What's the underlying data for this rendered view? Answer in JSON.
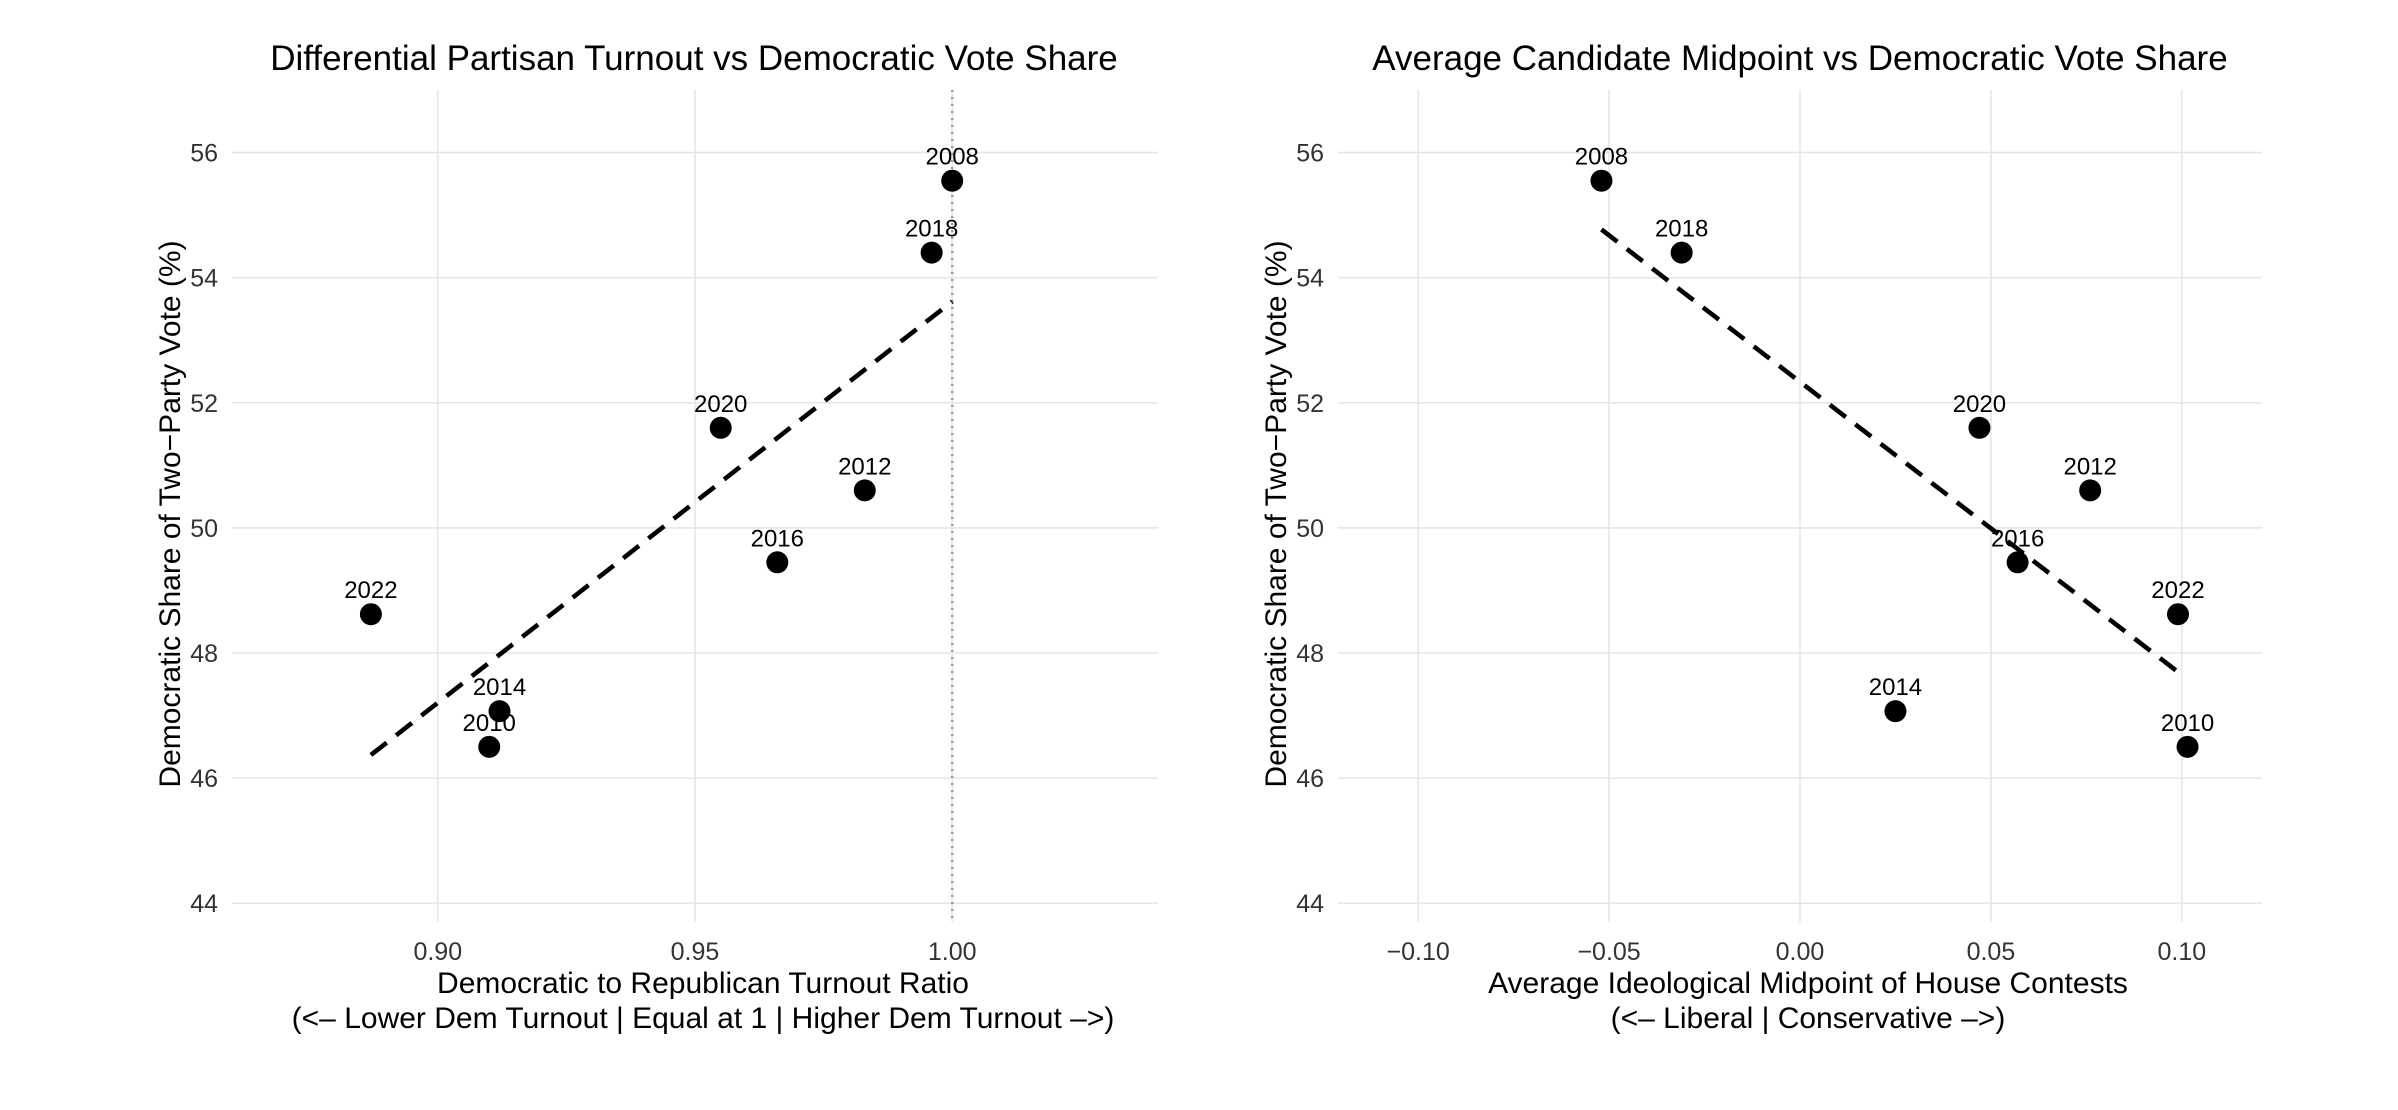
{
  "chart_data": [
    {
      "type": "scatter",
      "title": "Differential Partisan Turnout vs Democratic Vote Share",
      "xlabel": "Democratic to Republican Turnout Ratio",
      "xlabel_line2": "(<– Lower Dem Turnout | Equal at 1 | Higher Dem Turnout –>)",
      "ylabel": "Democratic Share of Two−Party Vote (%)",
      "xlim": [
        0.86,
        1.04
      ],
      "ylim": [
        43.7,
        57.0
      ],
      "x_ticks": [
        0.9,
        0.95,
        1.0
      ],
      "x_tick_labels": [
        "0.90",
        "0.95",
        "1.00"
      ],
      "y_ticks": [
        44,
        46,
        48,
        50,
        52,
        54,
        56
      ],
      "y_tick_labels": [
        "44",
        "46",
        "48",
        "50",
        "52",
        "54",
        "56"
      ],
      "reference_line": {
        "orientation": "vertical",
        "x": 1.0,
        "style": "dotted",
        "color": "#999999"
      },
      "trend_line": {
        "style": "dashed",
        "x": [
          0.887,
          1.0
        ],
        "y": [
          46.37,
          53.62
        ]
      },
      "points": [
        {
          "label": "2008",
          "x": 1.0,
          "y": 55.55
        },
        {
          "label": "2010",
          "x": 0.91,
          "y": 46.5
        },
        {
          "label": "2012",
          "x": 0.983,
          "y": 50.6
        },
        {
          "label": "2014",
          "x": 0.912,
          "y": 47.07
        },
        {
          "label": "2016",
          "x": 0.966,
          "y": 49.45
        },
        {
          "label": "2018",
          "x": 0.996,
          "y": 54.4
        },
        {
          "label": "2020",
          "x": 0.955,
          "y": 51.6
        },
        {
          "label": "2022",
          "x": 0.887,
          "y": 48.62
        }
      ]
    },
    {
      "type": "scatter",
      "title": "Average Candidate Midpoint vs Democratic Vote Share",
      "xlabel": "Average Ideological Midpoint of House Contests",
      "xlabel_line2": "(<– Liberal | Conservative –>)",
      "ylabel": "Democratic Share of Two−Party Vote (%)",
      "xlim": [
        -0.121,
        0.121
      ],
      "ylim": [
        43.7,
        57.0
      ],
      "x_ticks": [
        -0.1,
        -0.05,
        0.0,
        0.05,
        0.1
      ],
      "x_tick_labels": [
        "−0.10",
        "−0.05",
        "0.00",
        "0.05",
        "0.10"
      ],
      "y_ticks": [
        44,
        46,
        48,
        50,
        52,
        54,
        56
      ],
      "y_tick_labels": [
        "44",
        "46",
        "48",
        "50",
        "52",
        "54",
        "56"
      ],
      "trend_line": {
        "style": "dashed",
        "x": [
          -0.052,
          0.1
        ],
        "y": [
          54.77,
          47.65
        ]
      },
      "points": [
        {
          "label": "2008",
          "x": -0.052,
          "y": 55.55
        },
        {
          "label": "2010",
          "x": 0.1015,
          "y": 46.5
        },
        {
          "label": "2012",
          "x": 0.076,
          "y": 50.6
        },
        {
          "label": "2014",
          "x": 0.025,
          "y": 47.07
        },
        {
          "label": "2016",
          "x": 0.057,
          "y": 49.45
        },
        {
          "label": "2018",
          "x": -0.031,
          "y": 54.4
        },
        {
          "label": "2020",
          "x": 0.047,
          "y": 51.6
        },
        {
          "label": "2022",
          "x": 0.099,
          "y": 48.62
        }
      ]
    }
  ]
}
